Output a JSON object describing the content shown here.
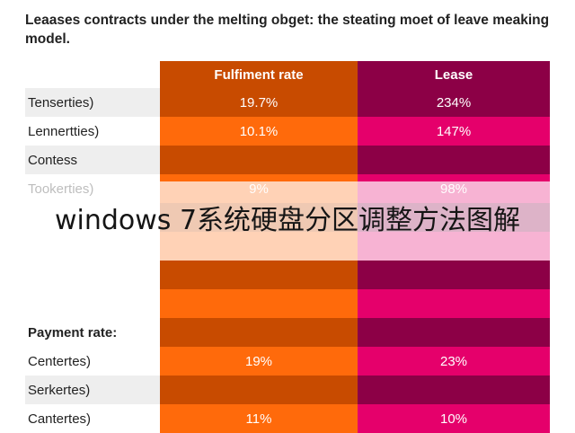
{
  "title": "Leaases contracts under the melting obget: the steating moet of leave meaking model.",
  "colors": {
    "fulfilment_dark": "#c84b00",
    "fulfilment_light": "#ff6a0b",
    "lease_dark": "#8c0046",
    "lease_light": "#e5006b",
    "label_shade": "#eeeeee"
  },
  "chart_data": {
    "type": "table",
    "title": "Leaases contracts under the melting obget: the steating moet of leave meaking model.",
    "columns": [
      "",
      "Fulfiment rate",
      "Lease"
    ],
    "rows": [
      {
        "label": "Tenserties)",
        "fulfilment": "19.7%",
        "lease": "234%"
      },
      {
        "label": "Lennertties)",
        "fulfilment": "10.1%",
        "lease": "147%"
      },
      {
        "label": "Contess",
        "fulfilment": "",
        "lease": ""
      },
      {
        "label": "Tookerties)",
        "fulfilment": "9%",
        "lease": "98%"
      },
      {
        "label": "",
        "fulfilment": "",
        "lease": ""
      },
      {
        "label": "",
        "fulfilment": "",
        "lease": ""
      },
      {
        "label": "",
        "fulfilment": "",
        "lease": ""
      },
      {
        "label": "",
        "fulfilment": "",
        "lease": ""
      },
      {
        "label": "Payment rate:",
        "fulfilment": "",
        "lease": "",
        "bold": true
      },
      {
        "label": "Centertes)",
        "fulfilment": "19%",
        "lease": "23%"
      },
      {
        "label": "Serkertes)",
        "fulfilment": "",
        "lease": ""
      },
      {
        "label": "Cantertes)",
        "fulfilment": "11%",
        "lease": "10%"
      }
    ]
  },
  "watermark": "windows 7系统硬盘分区调整方法图解"
}
